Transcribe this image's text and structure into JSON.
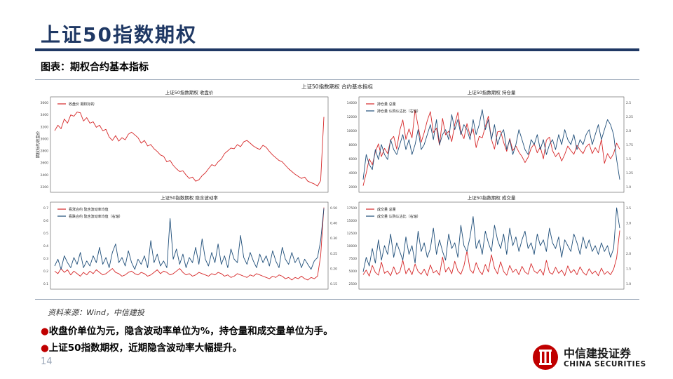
{
  "slide": {
    "title": "上证50指数期权",
    "figure_caption": "图表：期权合约基本指标",
    "source": "资料来源：Wind，中信建投",
    "bullets": [
      "收盘价单位为元，隐含波动率单位为%，持仓量和成交量单位为手。",
      "上证50指数期权，近期隐含波动率大幅提升。"
    ],
    "page_number": "14",
    "logo": {
      "cn": "中信建投证券",
      "en": "CHINA SECURITIES"
    }
  },
  "colors": {
    "red": "#d62728",
    "blue": "#1f4e79",
    "title": "#1f3864"
  },
  "chart_data": {
    "suptitle": "上证50指数期权 合约基本指标",
    "panels": [
      {
        "type": "line",
        "title": "上证50指数期权 收盘价",
        "ylabel": "期权标的收盘价",
        "ylim": [
          2300,
          3600
        ],
        "yticks": [
          "3600",
          "3400",
          "3200",
          "3000",
          "2800",
          "2600",
          "2400",
          "2200"
        ],
        "secondary_ylim": null,
        "series": [
          {
            "name": "收盘价 期权标的",
            "color": "#d62728",
            "axis": "left",
            "values": [
              3150,
              3230,
              3180,
              3320,
              3260,
              3380,
              3360,
              3420,
              3410,
              3290,
              3340,
              3260,
              3280,
              3200,
              3230,
              3150,
              3170,
              3060,
              3010,
              3080,
              3000,
              3050,
              3020,
              3100,
              3130,
              3090,
              3050,
              2970,
              3010,
              2930,
              2950,
              2890,
              2850,
              2800,
              2780,
              2700,
              2720,
              2650,
              2600,
              2560,
              2570,
              2510,
              2460,
              2480,
              2420,
              2440,
              2500,
              2540,
              2600,
              2660,
              2640,
              2700,
              2740,
              2820,
              2860,
              2900,
              2890,
              2950,
              2920,
              2990,
              3010,
              2970,
              2930,
              2900,
              2880,
              2940,
              2910,
              2850,
              2800,
              2760,
              2720,
              2700,
              2650,
              2600,
              2560,
              2520,
              2490,
              2460,
              2480,
              2420,
              2400,
              2380,
              2350,
              2430,
              3350
            ]
          }
        ]
      },
      {
        "type": "line",
        "title": "上证50指数期权 持仓量",
        "ylabel": "",
        "ylim": [
          2000,
          14000
        ],
        "yticks": [
          "14000",
          "12000",
          "10000",
          "8000",
          "6000",
          "4000",
          "2000"
        ],
        "secondary_ylim": [
          0.9,
          2.7
        ],
        "secondary_yticks": [
          "2.5",
          "2.25",
          "2.0",
          "1.75",
          "1.5",
          "1.25",
          "1.0"
        ],
        "series": [
          {
            "name": "持仓量 总量",
            "color": "#d62728",
            "axis": "left",
            "values": [
              2500,
              4200,
              6100,
              5300,
              7000,
              8100,
              6400,
              7500,
              6800,
              8600,
              9100,
              7400,
              9900,
              11300,
              8700,
              10100,
              8900,
              12600,
              10500,
              8300,
              9600,
              11200,
              12400,
              9600,
              10200,
              7900,
              11500,
              9300,
              9800,
              8400,
              10700,
              12300,
              9700,
              8800,
              10800,
              9200,
              10100,
              7600,
              9100,
              8900,
              10400,
              11800,
              8700,
              7400,
              9700,
              9800,
              8300,
              7100,
              8800,
              7200,
              7800,
              7000,
              6400,
              5600,
              6300,
              7500,
              8100,
              6900,
              7700,
              6100,
              8600,
              9000,
              7200,
              6400,
              6900,
              5800,
              6700,
              7800,
              7200,
              6700,
              7900,
              7300,
              6800,
              7700,
              8100,
              6800,
              7600,
              6900,
              8700,
              5500,
              6800,
              6100,
              6800,
              8200,
              7400
            ]
          },
          {
            "name": "持仓量 认购认沽比（右轴）",
            "color": "#1f4e79",
            "axis": "right",
            "values": [
              1.1,
              1.6,
              1.4,
              1.3,
              1.7,
              1.5,
              1.8,
              1.6,
              1.5,
              1.9,
              1.7,
              1.6,
              1.8,
              2.0,
              1.7,
              1.9,
              1.6,
              1.8,
              2.1,
              1.7,
              1.8,
              2.0,
              2.2,
              1.9,
              2.3,
              1.8,
              2.0,
              2.1,
              1.9,
              2.4,
              2.1,
              2.3,
              2.0,
              2.2,
              2.1,
              1.9,
              2.3,
              2.0,
              2.2,
              2.5,
              2.1,
              2.3,
              1.9,
              2.2,
              1.8,
              2.0,
              2.1,
              1.7,
              1.9,
              1.6,
              1.8,
              2.1,
              1.9,
              1.7,
              1.6,
              1.9,
              1.8,
              2.0,
              1.7,
              1.9,
              1.6,
              1.8,
              1.9,
              1.7,
              2.0,
              1.8,
              2.1,
              1.9,
              1.8,
              2.0,
              1.7,
              1.9,
              1.8,
              2.0,
              2.1,
              1.8,
              2.0,
              2.2,
              1.9,
              2.1,
              2.3,
              2.2,
              2.0,
              1.5,
              1.1
            ]
          }
        ]
      },
      {
        "type": "line",
        "title": "上证50指数期权 隐含波动率",
        "ylabel": "",
        "ylim": [
          0.08,
          0.72
        ],
        "yticks": [
          "0.7",
          "0.6",
          "0.5",
          "0.4",
          "0.3",
          "0.2",
          "0.1"
        ],
        "secondary_ylim": [
          0.08,
          0.56
        ],
        "secondary_yticks": [
          "0.50",
          "0.40",
          "0.30",
          "0.25",
          "0.20",
          "0.15"
        ],
        "series": [
          {
            "name": "看涨合约 隐含波动率均值",
            "color": "#d62728",
            "axis": "left",
            "values": [
              0.2,
              0.18,
              0.22,
              0.19,
              0.21,
              0.17,
              0.2,
              0.18,
              0.16,
              0.19,
              0.17,
              0.2,
              0.18,
              0.21,
              0.19,
              0.17,
              0.18,
              0.2,
              0.22,
              0.19,
              0.18,
              0.16,
              0.17,
              0.19,
              0.2,
              0.18,
              0.17,
              0.19,
              0.18,
              0.16,
              0.17,
              0.19,
              0.21,
              0.18,
              0.2,
              0.19,
              0.17,
              0.18,
              0.2,
              0.22,
              0.19,
              0.17,
              0.18,
              0.16,
              0.17,
              0.19,
              0.18,
              0.17,
              0.16,
              0.18,
              0.17,
              0.19,
              0.18,
              0.16,
              0.17,
              0.15,
              0.16,
              0.18,
              0.17,
              0.16,
              0.15,
              0.17,
              0.16,
              0.18,
              0.17,
              0.16,
              0.15,
              0.14,
              0.16,
              0.15,
              0.17,
              0.16,
              0.14,
              0.15,
              0.13,
              0.15,
              0.14,
              0.16,
              0.14,
              0.13,
              0.15,
              0.14,
              0.16,
              0.32,
              0.7
            ]
          },
          {
            "name": "看跌合约 隐含波动率均值（右轴）",
            "color": "#1f4e79",
            "axis": "right",
            "values": [
              0.2,
              0.24,
              0.18,
              0.26,
              0.22,
              0.19,
              0.25,
              0.21,
              0.28,
              0.19,
              0.23,
              0.2,
              0.26,
              0.22,
              0.31,
              0.21,
              0.25,
              0.19,
              0.28,
              0.33,
              0.22,
              0.25,
              0.2,
              0.29,
              0.22,
              0.18,
              0.24,
              0.21,
              0.26,
              0.19,
              0.35,
              0.22,
              0.27,
              0.2,
              0.23,
              0.19,
              0.48,
              0.24,
              0.3,
              0.21,
              0.27,
              0.19,
              0.25,
              0.22,
              0.31,
              0.21,
              0.36,
              0.24,
              0.2,
              0.28,
              0.22,
              0.33,
              0.21,
              0.26,
              0.19,
              0.3,
              0.24,
              0.22,
              0.38,
              0.25,
              0.21,
              0.28,
              0.23,
              0.19,
              0.27,
              0.22,
              0.26,
              0.2,
              0.29,
              0.23,
              0.19,
              0.31,
              0.24,
              0.21,
              0.28,
              0.22,
              0.25,
              0.19,
              0.24,
              0.21,
              0.18,
              0.23,
              0.25,
              0.35,
              0.54
            ]
          }
        ]
      },
      {
        "type": "line",
        "title": "上证50指数期权 成交量",
        "ylabel": "",
        "ylim": [
          0,
          17500
        ],
        "yticks": [
          "17500",
          "15000",
          "12500",
          "10000",
          "7500",
          "5000",
          "2500"
        ],
        "secondary_ylim": [
          0.8,
          3.6
        ],
        "secondary_yticks": [
          "3.5",
          "3.0",
          "2.5",
          "2.0",
          "1.5",
          "1.0"
        ],
        "series": [
          {
            "name": "成交量 总量",
            "color": "#d62728",
            "axis": "left",
            "values": [
              2500,
              3500,
              2200,
              4500,
              3000,
              2400,
              5200,
              2800,
              3300,
              2300,
              4200,
              2600,
              3100,
              5600,
              2700,
              3900,
              2500,
              4800,
              3200,
              2600,
              3700,
              2300,
              4600,
              2900,
              3400,
              2400,
              6300,
              3100,
              4100,
              2700,
              5400,
              3300,
              2600,
              4400,
              7600,
              3600,
              2800,
              5100,
              3400,
              2500,
              4700,
              3100,
              6800,
              3900,
              2700,
              5300,
              3200,
              2400,
              4500,
              3000,
              3700,
              2500,
              4300,
              3100,
              2600,
              4900,
              3300,
              2800,
              3700,
              2400,
              5600,
              3000,
              2600,
              4100,
              2800,
              3500,
              2300,
              4400,
              2900,
              3600,
              2500,
              4200,
              3000,
              2400,
              3800,
              2700,
              3300,
              2300,
              3900,
              2600,
              3200,
              2500,
              3700,
              6100,
              12000
            ]
          },
          {
            "name": "成交量 认购认沽比（右轴）",
            "color": "#1f4e79",
            "axis": "right",
            "values": [
              1.3,
              1.8,
              1.5,
              2.1,
              1.6,
              2.4,
              1.7,
              2.2,
              1.9,
              2.6,
              1.8,
              2.3,
              2.0,
              1.7,
              2.5,
              1.9,
              2.2,
              1.6,
              2.7,
              2.0,
              2.3,
              1.8,
              2.1,
              2.8,
              1.9,
              2.4,
              2.0,
              1.7,
              2.6,
              2.1,
              2.3,
              1.8,
              2.9,
              2.2,
              2.0,
              2.5,
              3.2,
              2.1,
              2.4,
              1.9,
              2.7,
              2.3,
              2.0,
              2.9,
              2.4,
              2.1,
              2.6,
              1.9,
              2.8,
              2.2,
              2.5,
              2.0,
              2.4,
              2.7,
              2.1,
              2.3,
              1.9,
              2.6,
              2.2,
              2.4,
              2.0,
              2.8,
              2.3,
              2.1,
              2.5,
              1.8,
              2.4,
              2.2,
              2.0,
              2.6,
              2.3,
              1.9,
              2.5,
              2.1,
              2.4,
              2.0,
              2.2,
              1.9,
              2.3,
              2.0,
              2.2,
              1.8,
              2.1,
              3.5,
              2.8
            ]
          }
        ]
      }
    ]
  }
}
